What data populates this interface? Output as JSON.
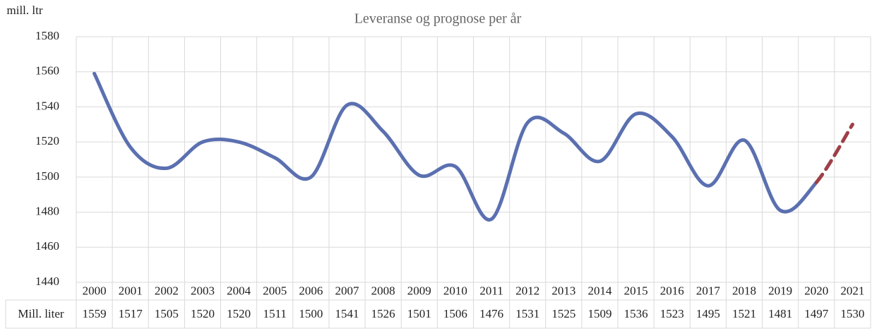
{
  "chart_data": {
    "type": "line",
    "title": "Leveranse og prognose per år",
    "y_label": "mill. ltr",
    "categories": [
      "2000",
      "2001",
      "2002",
      "2003",
      "2004",
      "2005",
      "2006",
      "2007",
      "2008",
      "2009",
      "2010",
      "2011",
      "2012",
      "2013",
      "2014",
      "2015",
      "2016",
      "2017",
      "2018",
      "2019",
      "2020",
      "2021"
    ],
    "series": [
      {
        "name": "Mill. liter",
        "color": "#5b70b0",
        "values": [
          1559,
          1517,
          1505,
          1520,
          1520,
          1511,
          1500,
          1541,
          1526,
          1501,
          1506,
          1476,
          1531,
          1525,
          1509,
          1536,
          1523,
          1495,
          1521,
          1481,
          1497,
          1530
        ]
      }
    ],
    "dashed_last_segment": true,
    "dashed_color": "#9e3f48",
    "ylim": [
      1440,
      1580
    ],
    "yticks": [
      1440,
      1460,
      1480,
      1500,
      1520,
      1540,
      1560,
      1580
    ],
    "grid": true,
    "data_table": true
  }
}
